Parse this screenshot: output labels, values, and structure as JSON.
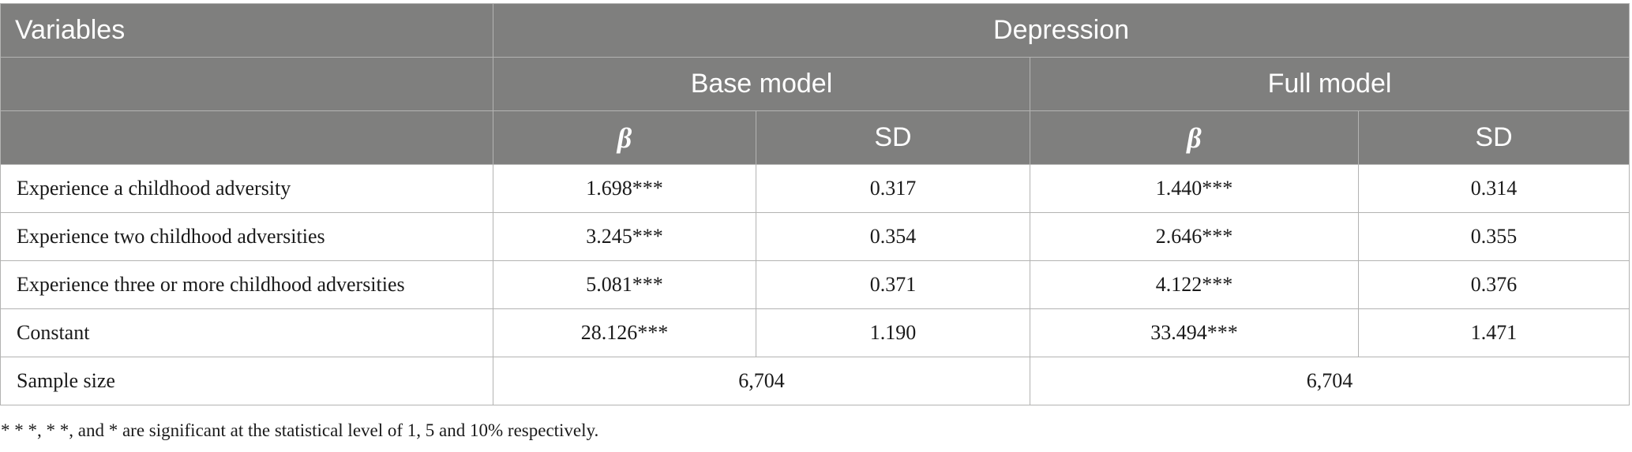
{
  "table": {
    "header": {
      "variables": "Variables",
      "outcome": "Depression",
      "models": [
        "Base model",
        "Full model"
      ],
      "stats": [
        "β",
        "SD",
        "β",
        "SD"
      ]
    },
    "rows": [
      {
        "label": "Experience a childhood adversity",
        "base_beta": "1.698***",
        "base_sd": "0.317",
        "full_beta": "1.440***",
        "full_sd": "0.314"
      },
      {
        "label": "Experience two childhood adversities",
        "base_beta": "3.245***",
        "base_sd": "0.354",
        "full_beta": "2.646***",
        "full_sd": "0.355"
      },
      {
        "label": "Experience three or more childhood adversities",
        "base_beta": "5.081***",
        "base_sd": "0.371",
        "full_beta": "4.122***",
        "full_sd": "0.376"
      },
      {
        "label": "Constant",
        "base_beta": "28.126***",
        "base_sd": "1.190",
        "full_beta": "33.494***",
        "full_sd": "1.471"
      }
    ],
    "sample_size": {
      "label": "Sample size",
      "base": "6,704",
      "full": "6,704"
    }
  },
  "footnote": "* * *, * *, and * are significant at the statistical level of 1, 5 and 10% respectively.",
  "colors": {
    "header_bg": "#7f7f7e",
    "header_text": "#ffffff",
    "grid": "#b3b3b2",
    "body_text": "#1a1a1a"
  }
}
